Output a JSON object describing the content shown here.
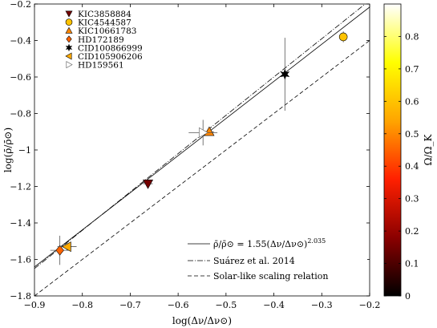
{
  "chart_data": {
    "type": "scatter",
    "xlabel": "log(Δν/Δν⊙)",
    "ylabel": "log(ρ̄/ρ̄⊙)",
    "xlim": [
      -0.9,
      -0.2
    ],
    "ylim": [
      -1.8,
      -0.2
    ],
    "xticks": [
      "−0.9",
      "−0.8",
      "−0.7",
      "−0.6",
      "−0.5",
      "−0.4",
      "−0.3",
      "−0.2"
    ],
    "yticks": [
      "−0.2",
      "−0.4",
      "−0.6",
      "−0.8",
      "−1",
      "−1.2",
      "−1.4",
      "−1.6",
      "−1.8"
    ],
    "xtick_values": [
      -0.9,
      -0.8,
      -0.7,
      -0.6,
      -0.5,
      -0.4,
      -0.3,
      -0.2
    ],
    "ytick_values": [
      -0.2,
      -0.4,
      -0.6,
      -0.8,
      -1.0,
      -1.2,
      -1.4,
      -1.6,
      -1.8
    ],
    "grid": false,
    "legend_placement": "top-left",
    "points": [
      {
        "name": "KIC3858884",
        "marker": "triangle-down",
        "x": -0.663,
        "y": -1.185,
        "xerr": 0.01,
        "yerr": 0.01,
        "omega": 0.15
      },
      {
        "name": "KIC4544587",
        "marker": "circle",
        "x": -0.255,
        "y": -0.38,
        "xerr": 0.005,
        "yerr": 0.03,
        "omega": 0.6
      },
      {
        "name": "KIC10661783",
        "marker": "triangle-up",
        "x": -0.535,
        "y": -0.9,
        "xerr": 0.01,
        "yerr": 0.02,
        "omega": 0.5
      },
      {
        "name": "HD172189",
        "marker": "diamond",
        "x": -0.847,
        "y": -1.55,
        "xerr": 0.02,
        "yerr": 0.08,
        "omega": 0.45
      },
      {
        "name": "CID100866999",
        "marker": "star",
        "x": -0.377,
        "y": -0.585,
        "xerr": 0.005,
        "yerr": 0.2,
        "omega": 0.0
      },
      {
        "name": "CID105906206",
        "marker": "triangle-left",
        "x": -0.832,
        "y": -1.53,
        "xerr": 0.02,
        "yerr": 0.02,
        "omega": 0.55
      },
      {
        "name": "HD159561",
        "marker": "triangle-right",
        "x": -0.548,
        "y": -0.905,
        "xerr": 0.03,
        "yerr": 0.07,
        "omega": 0.0
      }
    ],
    "lines": [
      {
        "name": "ρ̄/ρ̄⊙ = 1.55(Δν/Δν⊙)",
        "exponent": "2.035",
        "style": "solid",
        "slope": 2.035,
        "intercept": 0.19
      },
      {
        "name": "Suárez et al. 2014",
        "style": "dashdot",
        "slope": 2.1,
        "intercept": 0.24
      },
      {
        "name": "Solar-like scaling relation",
        "style": "dashed",
        "slope": 2.0,
        "intercept": 0.0
      }
    ],
    "colorbar": {
      "label": "Ω/Ω_K",
      "range": [
        0,
        0.9
      ],
      "ticks": [
        "0",
        "0.1",
        "0.2",
        "0.3",
        "0.4",
        "0.5",
        "0.6",
        "0.7",
        "0.8"
      ],
      "tick_values": [
        0,
        0.1,
        0.2,
        0.3,
        0.4,
        0.5,
        0.6,
        0.7,
        0.8
      ],
      "colormap": [
        "#000000",
        "#8b0000",
        "#ff2000",
        "#ffa500",
        "#ffff00",
        "#ffffff"
      ]
    }
  }
}
